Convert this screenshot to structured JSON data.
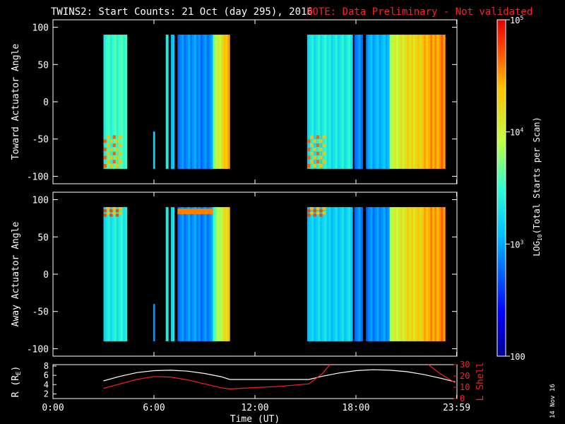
{
  "title": {
    "main": "TWINS2: Start Counts: 21 Oct (day 295), 2016",
    "note": "NOTE: Data Preliminary - Not validated"
  },
  "stamp": "14 Nov 16",
  "colors": {
    "note": "#ff2020",
    "lshell": "#ff2020",
    "radius": "#ffffff",
    "axes": "#ffffff",
    "background": "#000000"
  },
  "chart_data": [
    {
      "type": "heatmap",
      "panel": "toward",
      "ylabel": "Toward Actuator Angle",
      "ylim": [
        -110,
        110
      ],
      "yticks": [
        100,
        50,
        0,
        -50,
        -100
      ],
      "angle_range": [
        -90,
        90
      ],
      "xlim_hours": [
        0,
        24
      ],
      "segments": [
        {
          "start": 3.0,
          "end": 4.4,
          "level": 0.5,
          "feature": "edge_high_low_angles"
        },
        {
          "start": 5.95,
          "end": 6.05,
          "level": 0.45,
          "angle_range": [
            -40,
            -90
          ],
          "feature": "spike"
        },
        {
          "start": 6.7,
          "end": 6.85,
          "level": 0.5
        },
        {
          "start": 7.0,
          "end": 7.2,
          "level": 0.4
        },
        {
          "start": 7.4,
          "end": 9.5,
          "level": 0.3
        },
        {
          "start": 9.5,
          "end": 10.5,
          "level": 0.6,
          "feature": "rising_to_edge"
        },
        {
          "start": 15.1,
          "end": 17.8,
          "level": 0.45,
          "feature": "edge_high_low_angles"
        },
        {
          "start": 17.9,
          "end": 18.4,
          "level": 0.3
        },
        {
          "start": 18.6,
          "end": 20.0,
          "level": 0.35
        },
        {
          "start": 20.0,
          "end": 23.3,
          "level": 0.65,
          "feature": "rising_to_edge"
        }
      ]
    },
    {
      "type": "heatmap",
      "panel": "away",
      "ylabel": "Away Actuator Angle",
      "ylim": [
        -110,
        110
      ],
      "yticks": [
        100,
        50,
        0,
        -50,
        -100
      ],
      "angle_range": [
        -90,
        90
      ],
      "xlim_hours": [
        0,
        24
      ],
      "segments": [
        {
          "start": 3.0,
          "end": 4.4,
          "level": 0.45,
          "feature": "edge_high_angles"
        },
        {
          "start": 5.95,
          "end": 6.05,
          "level": 0.35,
          "angle_range": [
            -40,
            -90
          ],
          "feature": "spike"
        },
        {
          "start": 6.7,
          "end": 6.85,
          "level": 0.5
        },
        {
          "start": 7.0,
          "end": 7.2,
          "level": 0.45
        },
        {
          "start": 7.4,
          "end": 9.5,
          "level": 0.3,
          "feature": "band_at_80"
        },
        {
          "start": 9.5,
          "end": 10.5,
          "level": 0.55,
          "feature": "rising_to_edge"
        },
        {
          "start": 15.1,
          "end": 17.8,
          "level": 0.4,
          "feature": "edge_high_angles"
        },
        {
          "start": 17.9,
          "end": 18.4,
          "level": 0.3
        },
        {
          "start": 18.6,
          "end": 20.0,
          "level": 0.3
        },
        {
          "start": 20.0,
          "end": 23.3,
          "level": 0.65,
          "feature": "rising_to_edge"
        }
      ]
    },
    {
      "type": "line",
      "panel": "orbit",
      "xlabel": "Time (UT)",
      "xticks": [
        "0:00",
        "6:00",
        "12:00",
        "18:00",
        "23:59"
      ],
      "xtick_hours": [
        0,
        6,
        12,
        18,
        23.98
      ],
      "y_left": {
        "label": "R (R",
        "label_sub": "E",
        "label_end": ")",
        "ticks": [
          8,
          6,
          4,
          2
        ],
        "range": [
          1,
          8.3
        ]
      },
      "y_right": {
        "label": "L Shell",
        "ticks": [
          30,
          20,
          10,
          0
        ],
        "range": [
          0,
          30
        ]
      },
      "series": [
        {
          "name": "R (RE)",
          "axis": "left",
          "color": "#ffffff",
          "x": [
            3.0,
            4.0,
            5.0,
            6.0,
            7.0,
            8.0,
            9.0,
            10.0,
            10.5,
            12.0,
            13.5,
            15.2,
            16.0,
            17.0,
            18.0,
            19.0,
            20.0,
            21.0,
            22.0,
            23.0,
            23.9
          ],
          "y": [
            4.8,
            5.8,
            6.6,
            7.0,
            7.1,
            6.9,
            6.4,
            5.7,
            5.1,
            5.1,
            5.1,
            5.1,
            5.8,
            6.5,
            7.0,
            7.2,
            7.1,
            6.8,
            6.2,
            5.4,
            4.6
          ]
        },
        {
          "name": "L Shell",
          "axis": "right",
          "color": "#ff2020",
          "x": [
            3.0,
            4.0,
            5.0,
            6.0,
            7.0,
            8.0,
            9.0,
            10.0,
            10.5,
            12.0,
            13.5,
            15.2,
            16.0,
            16.45
          ],
          "y": [
            9.0,
            13.0,
            17.0,
            19.5,
            19.0,
            16.5,
            13.0,
            9.5,
            8.5,
            9.7,
            10.8,
            13.0,
            22.0,
            30.0
          ],
          "x2": [
            22.3,
            23.0,
            23.9
          ],
          "y2": [
            30.0,
            22.0,
            14.0
          ]
        }
      ]
    }
  ],
  "colorbar": {
    "label_main": "LOG",
    "label_sub": "10",
    "label_rest": "(Total Starts per Scan)",
    "ticks": [
      {
        "value": 100,
        "text": "100",
        "kind": "plain"
      },
      {
        "value": 1000,
        "base": "10",
        "exp": "3",
        "kind": "power"
      },
      {
        "value": 10000,
        "base": "10",
        "exp": "4",
        "kind": "power"
      },
      {
        "value": 100000,
        "base": "10",
        "exp": "5",
        "kind": "power"
      }
    ],
    "range": [
      100,
      100000
    ]
  }
}
